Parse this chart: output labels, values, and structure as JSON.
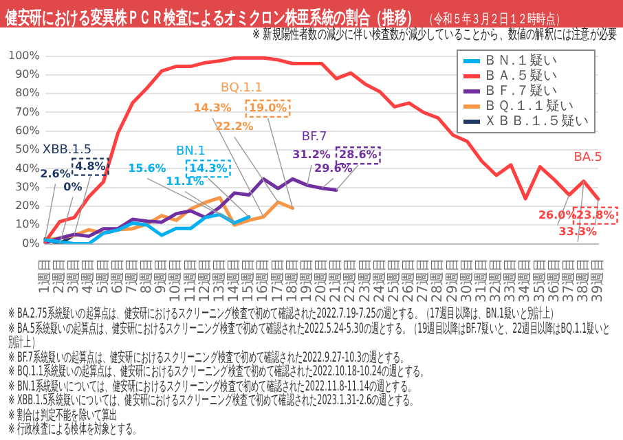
{
  "chart_data": {
    "type": "line",
    "title": "健安研における変異株ＰＣＲ検査によるオミクロン株亜系統の割合（推移）",
    "subtitle": "（令和５年３月２日１２時時点）",
    "categories": [
      "1週目",
      "2週目",
      "3週目",
      "4週目",
      "5週目",
      "6週目",
      "7週目",
      "8週目",
      "9週目",
      "10週目",
      "11週目",
      "12週目",
      "13週目",
      "14週目",
      "15週目",
      "16週目",
      "17週目",
      "18週目",
      "19週目",
      "20週目",
      "21週目",
      "22週目",
      "23週目",
      "24週目",
      "25週目",
      "26週目",
      "27週目",
      "28週目",
      "29週目",
      "30週目",
      "31週目",
      "32週目",
      "33週目",
      "34週目",
      "35週目",
      "36週目",
      "37週目",
      "38週目",
      "39週目"
    ],
    "series": [
      {
        "name": "ＢＮ.１疑い",
        "color": "#00b0f0",
        "values": [
          2,
          1,
          0,
          0,
          5.6,
          7.3,
          11,
          10,
          4.5,
          8.2,
          8.2,
          14,
          15.6,
          11.1,
          14.3,
          null,
          null,
          null,
          null,
          null,
          null,
          null,
          null,
          null,
          null,
          null,
          null,
          null,
          null,
          null,
          null,
          null,
          null,
          null,
          null,
          null,
          null,
          null,
          null
        ]
      },
      {
        "name": "ＢＡ.５疑い",
        "color": "#ff4040",
        "values": [
          1,
          11.8,
          14,
          25,
          33,
          59,
          75,
          83,
          92,
          94.5,
          94.5,
          96.5,
          97.5,
          99,
          99,
          99,
          98,
          96,
          96,
          96,
          88,
          91,
          85,
          81,
          73,
          75,
          70,
          67,
          58,
          54.5,
          44,
          36.5,
          42,
          24,
          41,
          34,
          26.0,
          33.3,
          23.8
        ]
      },
      {
        "name": "ＢＦ.７疑い",
        "color": "#7030a0",
        "values": [
          0.5,
          3,
          5,
          4,
          8,
          8,
          13,
          12,
          11.5,
          16,
          17.5,
          14,
          19.5,
          27,
          26,
          34.5,
          29.5,
          34.5,
          31.2,
          29.6,
          28.6,
          null,
          null,
          null,
          null,
          null,
          null,
          null,
          null,
          null,
          null,
          null,
          null,
          null,
          null,
          null,
          null,
          null,
          null
        ]
      },
      {
        "name": "ＢＱ.１.１疑い",
        "color": "#f79646",
        "values": [
          2,
          3,
          4.5,
          7.5,
          5.6,
          7.5,
          8,
          10.5,
          15,
          12.5,
          18.5,
          22,
          24.5,
          10,
          12.5,
          14.3,
          22.2,
          19.0,
          null,
          null,
          null,
          null,
          null,
          null,
          null,
          null,
          null,
          null,
          null,
          null,
          null,
          null,
          null,
          null,
          null,
          null,
          null,
          null,
          null
        ]
      },
      {
        "name": "ＸＢＢ.１.５疑い",
        "color": "#1f3864",
        "values": [
          2.6,
          0,
          4.8,
          null,
          null,
          null,
          null,
          null,
          null,
          null,
          null,
          null,
          null,
          null,
          null,
          null,
          null,
          null,
          null,
          null,
          null,
          null,
          null,
          null,
          null,
          null,
          null,
          null,
          null,
          null,
          null,
          null,
          null,
          null,
          null,
          null,
          null,
          null,
          null
        ]
      }
    ],
    "ylim": [
      0,
      100
    ],
    "yticks": [
      {
        "value": 0,
        "label": "0%"
      },
      {
        "value": 10,
        "label": "10%"
      },
      {
        "value": 20,
        "label": "20%"
      },
      {
        "value": 30,
        "label": "30%"
      },
      {
        "value": 40,
        "label": "40%"
      },
      {
        "value": 50,
        "label": "50%"
      },
      {
        "value": 60,
        "label": "60%"
      },
      {
        "value": 70,
        "label": "70%"
      },
      {
        "value": 80,
        "label": "80%"
      },
      {
        "value": 90,
        "label": "90%"
      },
      {
        "value": 100,
        "label": "100%"
      }
    ],
    "grid": "y",
    "legend": "top right",
    "marker": "none",
    "line_style": "solid",
    "annotations": [
      {
        "text": "2.6%",
        "x": "1週目",
        "y": 2.6
      },
      {
        "text": "0%",
        "x": "2週目",
        "y": 0
      },
      {
        "text": "4.8%",
        "x": "3週目",
        "y": 4.8
      },
      {
        "text": "15.6%",
        "x": "13週目",
        "y": 15.6
      },
      {
        "text": "11.1%",
        "x": "14週目",
        "y": 11.1
      },
      {
        "text": "14.3%",
        "x": "15週目",
        "y": 14.3
      },
      {
        "text": "14.3%",
        "x": "16週目",
        "y": 14.3
      },
      {
        "text": "22.2%",
        "x": "17週目",
        "y": 22.2
      },
      {
        "text": "19.0%",
        "x": "18週目",
        "y": 19.0
      },
      {
        "text": "31.2%",
        "x": "19週目",
        "y": 31.2
      },
      {
        "text": "29.6%",
        "x": "20週目",
        "y": 29.6
      },
      {
        "text": "28.6%",
        "x": "21週目",
        "y": 28.6
      },
      {
        "text": "26.0%",
        "x": "37週目",
        "y": 26.0
      },
      {
        "text": "33.3%",
        "x": "38週目",
        "y": 33.3
      },
      {
        "text": "23.8%",
        "x": "39週目",
        "y": 23.8
      },
      "BN.1",
      "BA.5",
      "BF.7",
      "BQ.1.1",
      "XBB.1.5",
      "※ 新規陽性者数の減少に伴い検査数が減少していることから、数値の解釈には注意が必要",
      "※ BA.2.75系統疑いの起算点は、健安研におけるスクリーニング検査で初めて確認された2022.7.19-7.25の週とする。（17週目以降は、BN.1疑いと別計上）",
      "※ BA.5系統疑いの起算点は、健安研におけるスクリーニング検査で初めて確認された2022.5.24-5.30の週とする。（19週目以降はBF.7疑いと、22週目以降はBQ.1.1疑いと別計上）",
      "※ BF.7系統疑いの起算点は、健安研におけるスクリーニング検査で初めて確認された2022.9.27-10.3の週とする。",
      "※ BQ.1.1系統疑いの起算点は、健安研におけるスクリーニング検査で初めて確認された2022.10.18-10.24の週とする。",
      "※ BN.1系統疑いについては、健安研におけるスクリーニング検査で初めて確認された2022.11.8-11.14の週とする。",
      "※ XBB.1.5系統疑いについては、健安研におけるスクリーニング検査で初めて確認された2023.1.31-2.6の週とする。",
      "※ 割合は判定不能を除いて算出",
      "※ 行政検査による検体を対象とする。"
    ]
  }
}
